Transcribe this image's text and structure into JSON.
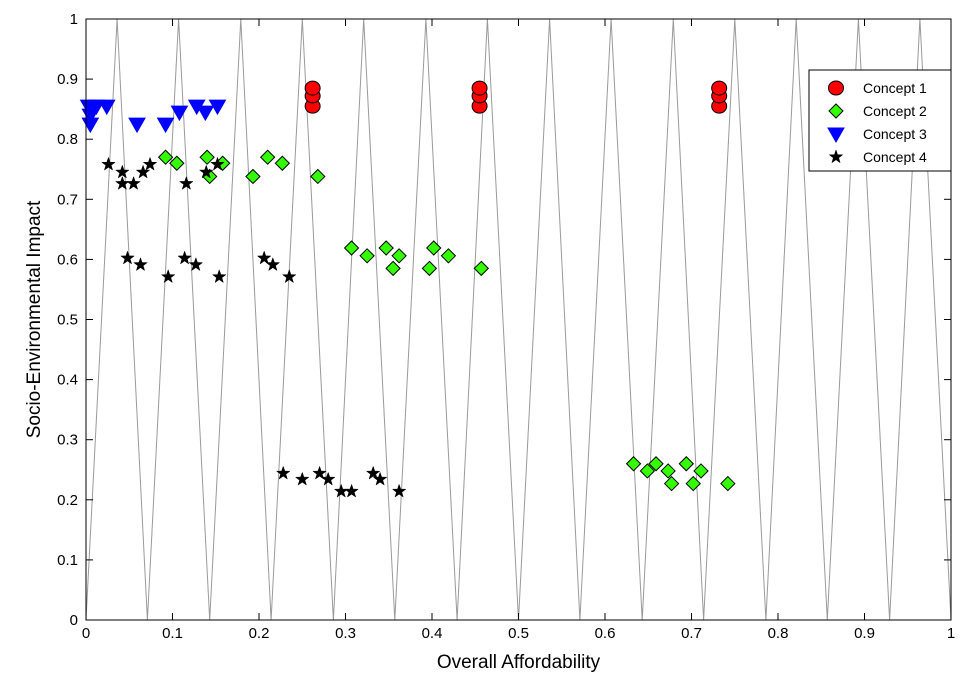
{
  "chart_data": {
    "type": "scatter",
    "xlabel": "Overall Affordability",
    "ylabel": "Socio-Environmental Impact",
    "xlim": [
      0,
      1
    ],
    "ylim": [
      0,
      1
    ],
    "xticks": [
      "0",
      "0.1",
      "0.2",
      "0.3",
      "0.4",
      "0.5",
      "0.6",
      "0.7",
      "0.8",
      "0.9",
      "1"
    ],
    "yticks": [
      "0",
      "0.1",
      "0.2",
      "0.3",
      "0.4",
      "0.5",
      "0.6",
      "0.7",
      "0.8",
      "0.9",
      "1"
    ],
    "grid": false,
    "legend_position": "top-right",
    "background_pattern": {
      "description": "gray zigzag lines",
      "color": "#9a9a9a",
      "vertices_at_bottom": [
        0,
        0.071,
        0.143,
        0.214,
        0.286,
        0.357,
        0.429,
        0.5,
        0.571,
        0.643,
        0.714,
        0.786,
        0.857,
        0.929,
        1
      ],
      "vertices_at_top": [
        0.036,
        0.107,
        0.179,
        0.25,
        0.321,
        0.393,
        0.464,
        0.536,
        0.607,
        0.679,
        0.75,
        0.821,
        0.893,
        0.964
      ]
    },
    "series": [
      {
        "name": "Concept 1",
        "marker": "circle",
        "color": "#ff0000",
        "points": [
          [
            0.262,
            0.855
          ],
          [
            0.262,
            0.872
          ],
          [
            0.262,
            0.885
          ],
          [
            0.455,
            0.855
          ],
          [
            0.455,
            0.872
          ],
          [
            0.455,
            0.885
          ],
          [
            0.732,
            0.855
          ],
          [
            0.732,
            0.872
          ],
          [
            0.732,
            0.885
          ]
        ]
      },
      {
        "name": "Concept 2",
        "marker": "diamond",
        "color": "#33ff00",
        "points": [
          [
            0.092,
            0.77
          ],
          [
            0.105,
            0.76
          ],
          [
            0.14,
            0.77
          ],
          [
            0.143,
            0.738
          ],
          [
            0.158,
            0.76
          ],
          [
            0.193,
            0.738
          ],
          [
            0.21,
            0.77
          ],
          [
            0.227,
            0.76
          ],
          [
            0.268,
            0.738
          ],
          [
            0.307,
            0.619
          ],
          [
            0.325,
            0.606
          ],
          [
            0.347,
            0.619
          ],
          [
            0.355,
            0.585
          ],
          [
            0.362,
            0.606
          ],
          [
            0.397,
            0.585
          ],
          [
            0.402,
            0.619
          ],
          [
            0.419,
            0.606
          ],
          [
            0.457,
            0.585
          ],
          [
            0.633,
            0.26
          ],
          [
            0.649,
            0.248
          ],
          [
            0.659,
            0.26
          ],
          [
            0.673,
            0.248
          ],
          [
            0.677,
            0.227
          ],
          [
            0.694,
            0.26
          ],
          [
            0.702,
            0.227
          ],
          [
            0.711,
            0.248
          ],
          [
            0.742,
            0.227
          ]
        ]
      },
      {
        "name": "Concept 3",
        "marker": "triangle-down",
        "color": "#0000ff",
        "points": [
          [
            0.003,
            0.855
          ],
          [
            0.005,
            0.84
          ],
          [
            0.005,
            0.825
          ],
          [
            0.012,
            0.855
          ],
          [
            0.024,
            0.855
          ],
          [
            0.059,
            0.825
          ],
          [
            0.092,
            0.825
          ],
          [
            0.108,
            0.845
          ],
          [
            0.128,
            0.855
          ],
          [
            0.138,
            0.845
          ],
          [
            0.152,
            0.855
          ]
        ]
      },
      {
        "name": "Concept 4",
        "marker": "star",
        "color": "#000000",
        "points": [
          [
            0.026,
            0.758
          ],
          [
            0.042,
            0.745
          ],
          [
            0.042,
            0.726
          ],
          [
            0.055,
            0.726
          ],
          [
            0.066,
            0.745
          ],
          [
            0.074,
            0.758
          ],
          [
            0.048,
            0.602
          ],
          [
            0.063,
            0.591
          ],
          [
            0.095,
            0.571
          ],
          [
            0.114,
            0.602
          ],
          [
            0.116,
            0.726
          ],
          [
            0.127,
            0.591
          ],
          [
            0.139,
            0.745
          ],
          [
            0.152,
            0.758
          ],
          [
            0.154,
            0.571
          ],
          [
            0.206,
            0.602
          ],
          [
            0.216,
            0.591
          ],
          [
            0.235,
            0.571
          ],
          [
            0.228,
            0.244
          ],
          [
            0.25,
            0.234
          ],
          [
            0.27,
            0.244
          ],
          [
            0.28,
            0.234
          ],
          [
            0.295,
            0.214
          ],
          [
            0.307,
            0.214
          ],
          [
            0.332,
            0.244
          ],
          [
            0.34,
            0.234
          ],
          [
            0.362,
            0.214
          ]
        ]
      }
    ]
  }
}
